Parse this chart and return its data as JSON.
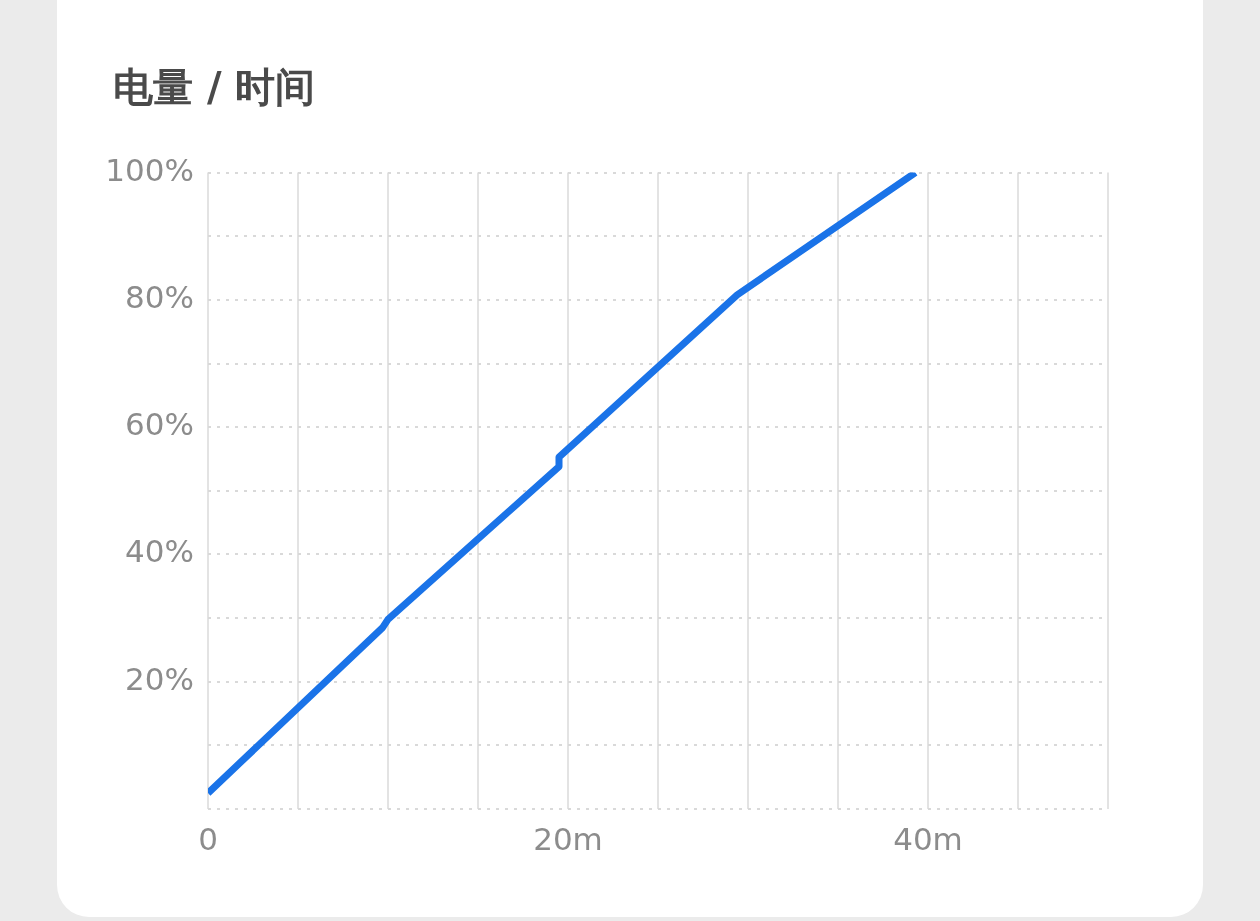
{
  "chart_data": {
    "type": "line",
    "title": "电量 / 时间",
    "x": [
      0,
      9.7,
      10,
      19.5,
      19.5,
      29.4,
      39.3
    ],
    "values": [
      2.5,
      28.5,
      29.8,
      53.8,
      55.3,
      80.8,
      100
    ],
    "color": "#1a73e8",
    "xlim": [
      0,
      50
    ],
    "xticks": [
      0,
      {
        "value": 5,
        "label": null
      },
      {
        "value": 10,
        "label": null
      },
      {
        "value": 15,
        "label": null
      },
      {
        "value": 20,
        "label": "20m"
      },
      {
        "value": 25,
        "label": null
      },
      {
        "value": 30,
        "label": null
      },
      {
        "value": 35,
        "label": null
      },
      {
        "value": 40,
        "label": "40m"
      },
      {
        "value": 45,
        "label": null
      },
      {
        "value": 50,
        "label": null
      }
    ],
    "ylim": [
      0,
      100
    ],
    "yticks": [
      {
        "value": 0,
        "label": null
      },
      {
        "value": 10,
        "label": null
      },
      {
        "value": 20,
        "label": "20%"
      },
      {
        "value": 30,
        "label": null
      },
      {
        "value": 40,
        "label": "40%"
      },
      {
        "value": 50,
        "label": null
      },
      {
        "value": 60,
        "label": "60%"
      },
      {
        "value": 70,
        "label": null
      },
      {
        "value": 80,
        "label": "80%"
      },
      {
        "value": 90,
        "label": null
      },
      {
        "value": 100,
        "label": "100%"
      }
    ],
    "grid": true,
    "marker": "none",
    "line_style": "solid"
  }
}
